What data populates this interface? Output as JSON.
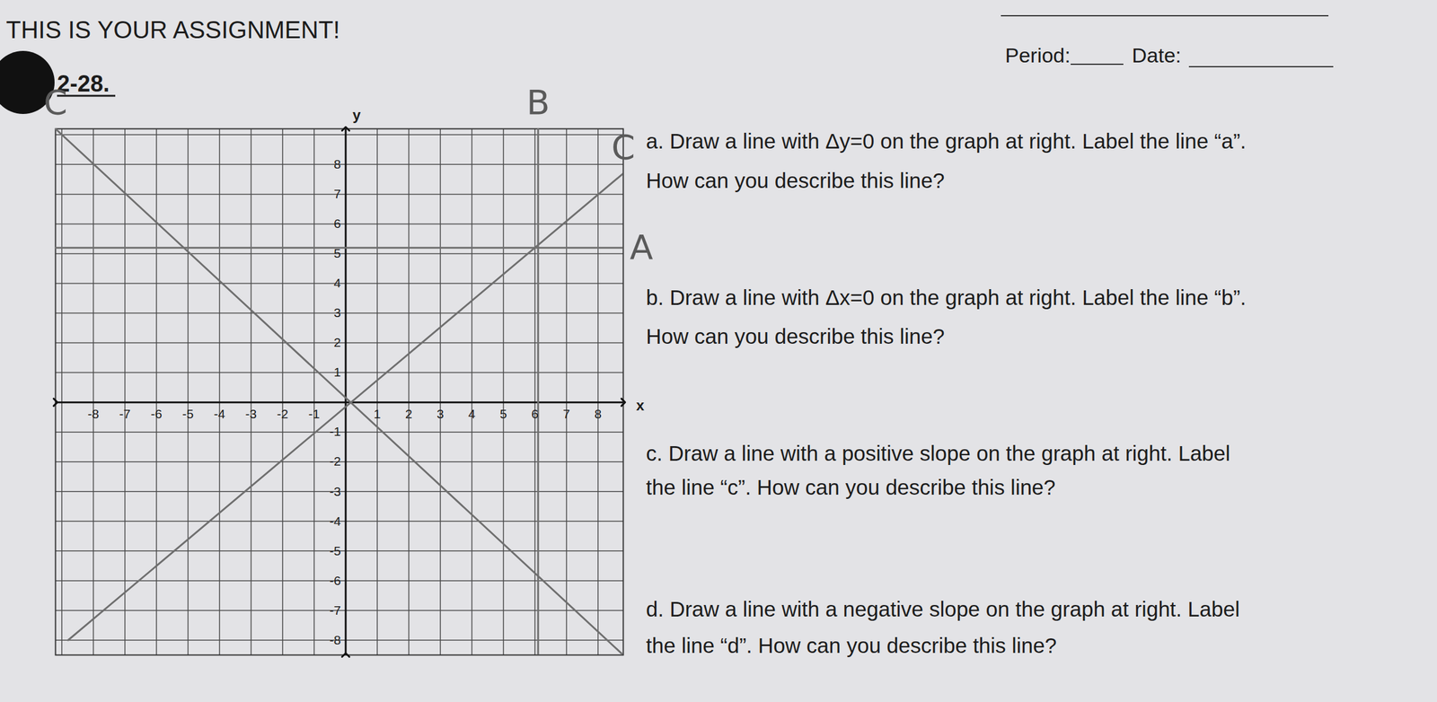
{
  "header": {
    "title": "THIS IS YOUR ASSIGNMENT!",
    "fields": [
      "Period:",
      "Date:"
    ]
  },
  "problem": "2-28.",
  "chart_data": {
    "type": "line",
    "xlabel": "x",
    "ylabel": "y",
    "xlim": [
      -9.2,
      8.8
    ],
    "ylim": [
      -8.5,
      9.2
    ],
    "xticks": [
      -8,
      -7,
      -6,
      -5,
      -4,
      -3,
      -2,
      -1,
      1,
      2,
      3,
      4,
      5,
      6,
      7,
      8
    ],
    "yticks": [
      -8,
      -7,
      -6,
      -5,
      -4,
      -3,
      -2,
      -1,
      1,
      2,
      3,
      4,
      5,
      6,
      7,
      8
    ],
    "grid": true,
    "color": "#6f6f6f",
    "series": [
      {
        "name": "A",
        "x": [
          -9.2,
          8.8
        ],
        "values": [
          5.2,
          5.2
        ]
      },
      {
        "name": "B",
        "x": [
          6.1,
          6.1
        ],
        "values": [
          -8.5,
          9.2
        ]
      },
      {
        "name": "C",
        "x": [
          -8.8,
          8.8
        ],
        "values": [
          -8,
          7.7
        ]
      },
      {
        "name": "C",
        "x": [
          -9.2,
          8.8
        ],
        "values": [
          9.2,
          -8.5
        ]
      }
    ]
  },
  "questions": [
    {
      "label": "a.",
      "lines": [
        "Draw a line with Δy=0 on the graph at right. Label the line “a”.",
        "How can you describe this line?"
      ]
    },
    {
      "label": "b.",
      "lines": [
        "Draw a line with Δx=0 on the graph at right. Label the line “b”.",
        "How can you describe this line?"
      ]
    },
    {
      "label": "c.",
      "lines": [
        "Draw a line with a positive slope on the graph at right. Label",
        "the line “c”. How can you describe this line?"
      ]
    },
    {
      "label": "d.",
      "lines": [
        "Draw a line with a negative slope on the graph at right. Label",
        "the line “d”. How can you describe this line?"
      ]
    }
  ]
}
